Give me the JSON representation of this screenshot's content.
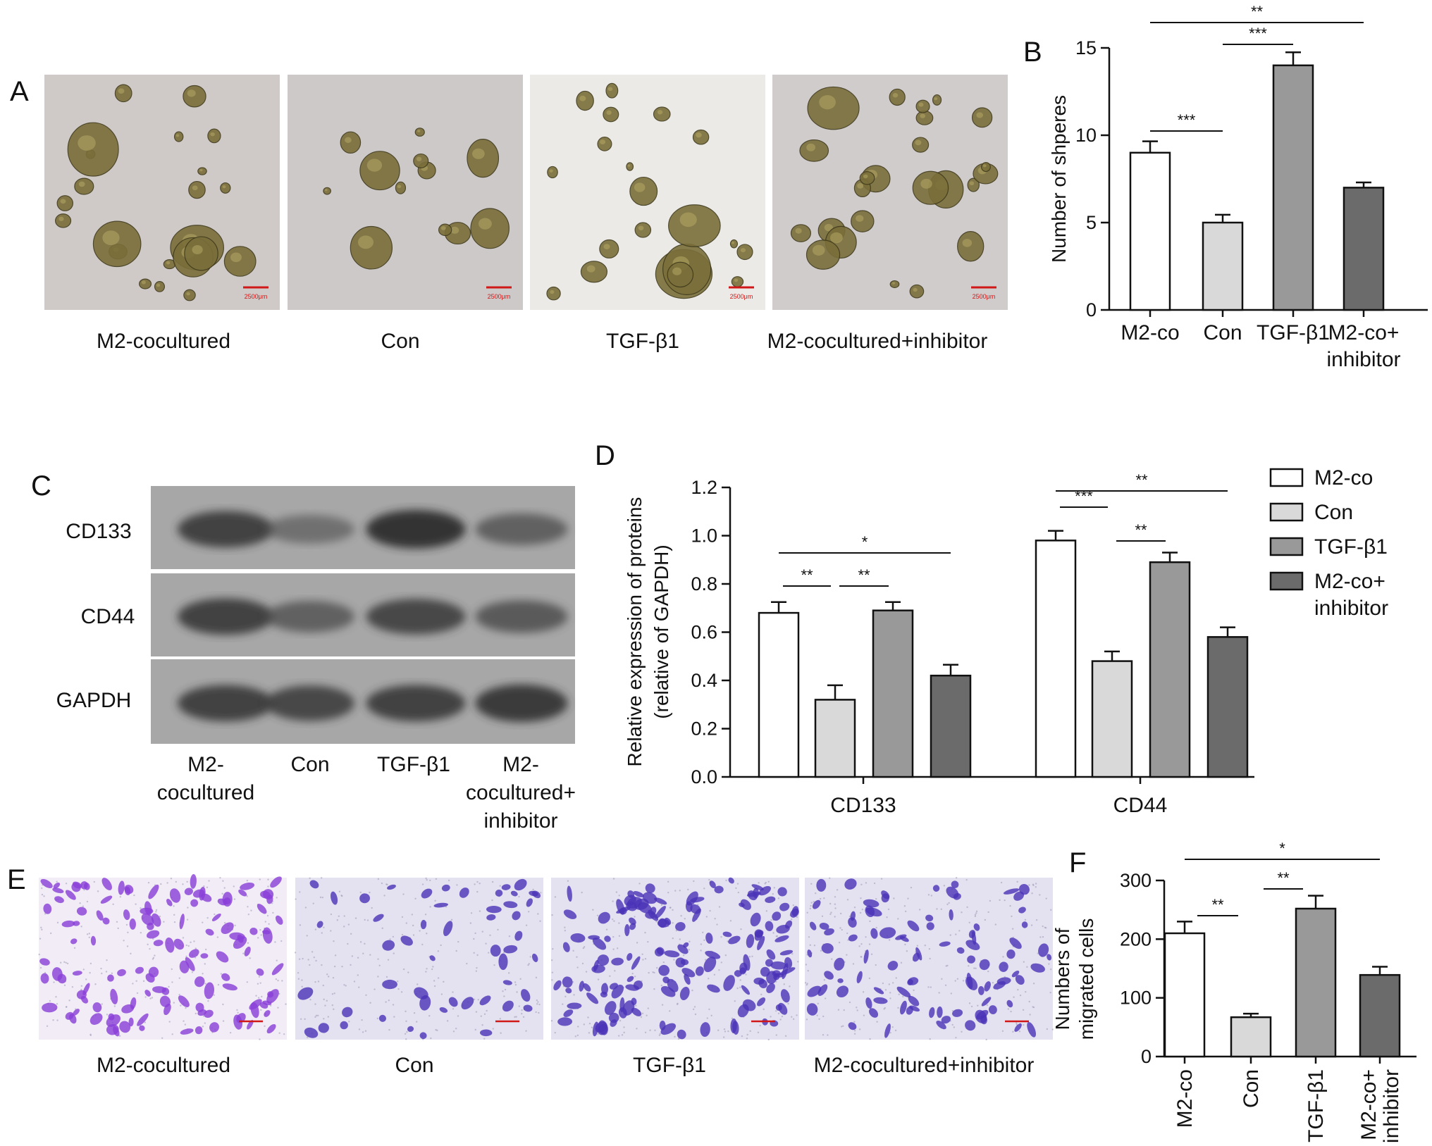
{
  "panel_labels": {
    "A": "A",
    "B": "B",
    "C": "C",
    "D": "D",
    "E": "E",
    "F": "F"
  },
  "panel_a": {
    "captions": [
      "M2-cocultured",
      "Con",
      "TGF-β1",
      "M2-cocultured+inhibitor"
    ],
    "scale_bar": "2500μm",
    "colors": {
      "background": "#cfcac7",
      "spheres": "#7a6e3a"
    }
  },
  "panel_c": {
    "row_labels": [
      "CD133",
      "CD44",
      "GAPDH"
    ],
    "lane_labels": [
      "M2-\ncocultured",
      "Con",
      "TGF-β1",
      "M2-\ncocultured+\ninhibitor"
    ],
    "band_strength": [
      [
        0.85,
        0.45,
        0.95,
        0.6
      ],
      [
        0.85,
        0.6,
        0.8,
        0.65
      ],
      [
        0.85,
        0.8,
        0.85,
        0.9
      ]
    ]
  },
  "panel_e": {
    "captions": [
      "M2-cocultured",
      "Con",
      "TGF-β1",
      "M2-cocultured+inhibitor"
    ],
    "colors": {
      "background": "#e4e2f0",
      "cells": "#4b33b8",
      "cells_first": "#8a3fd8"
    },
    "density": [
      0.75,
      0.3,
      0.9,
      0.55
    ]
  },
  "chart_data": [
    {
      "id": "B",
      "type": "bar",
      "categories": [
        "M2-co",
        "Con",
        "TGF-β1",
        "M2-co+\ninhibitor"
      ],
      "values": [
        9.0,
        5.0,
        14.0,
        7.0
      ],
      "errors": [
        0.65,
        0.45,
        0.75,
        0.3
      ],
      "ylabel": "Number of shperes",
      "ylim": [
        0,
        15
      ],
      "yticks": [
        0,
        5,
        10,
        15
      ],
      "bar_colors": [
        "#ffffff",
        "#d9d9d9",
        "#999999",
        "#6b6b6b"
      ],
      "significance": [
        {
          "from": 0,
          "to": 1,
          "label": "***"
        },
        {
          "from": 1,
          "to": 2,
          "label": "***"
        },
        {
          "from": 0,
          "to": 3,
          "label": "**"
        }
      ]
    },
    {
      "id": "D",
      "type": "bar",
      "categories": [
        "CD133",
        "CD44"
      ],
      "series": [
        {
          "name": "M2-co",
          "values": [
            0.68,
            0.98
          ],
          "errors": [
            0.045,
            0.04
          ]
        },
        {
          "name": "Con",
          "values": [
            0.32,
            0.48
          ],
          "errors": [
            0.06,
            0.04
          ]
        },
        {
          "name": "TGF-β1",
          "values": [
            0.69,
            0.89
          ],
          "errors": [
            0.035,
            0.04
          ]
        },
        {
          "name": "M2-co+\ninhibitor",
          "values": [
            0.42,
            0.58
          ],
          "errors": [
            0.045,
            0.04
          ]
        }
      ],
      "ylabel": "Relative expression of proteins\n(relative of GAPDH)",
      "ylim": [
        0,
        1.2
      ],
      "yticks": [
        "0.0",
        "0.2",
        "0.4",
        "0.6",
        "0.8",
        "1.0",
        "1.2"
      ],
      "bar_colors": [
        "#ffffff",
        "#d9d9d9",
        "#999999",
        "#6b6b6b"
      ],
      "legend_position": "right",
      "significance": [
        {
          "group": 0,
          "from": 0,
          "to": 1,
          "label": "**"
        },
        {
          "group": 0,
          "from": 1,
          "to": 2,
          "label": "**"
        },
        {
          "group": 0,
          "from": 0,
          "to": 3,
          "label": "*"
        },
        {
          "group": 1,
          "from": 0,
          "to": 1,
          "label": "***"
        },
        {
          "group": 1,
          "from": 1,
          "to": 2,
          "label": "**"
        },
        {
          "group": 1,
          "from": 0,
          "to": 3,
          "label": "**"
        }
      ]
    },
    {
      "id": "F",
      "type": "bar",
      "categories": [
        "M2-co",
        "Con",
        "TGF-β1",
        "M2-co+\ninhibitor"
      ],
      "values": [
        210,
        67,
        252,
        139
      ],
      "errors": [
        20,
        6,
        22,
        14
      ],
      "ylabel": "Numbers of\nmigrated cells",
      "ylim": [
        0,
        300
      ],
      "yticks": [
        0,
        100,
        200,
        300
      ],
      "bar_colors": [
        "#ffffff",
        "#d9d9d9",
        "#999999",
        "#6b6b6b"
      ],
      "rotated_labels": true,
      "significance": [
        {
          "from": 0,
          "to": 1,
          "label": "**"
        },
        {
          "from": 1,
          "to": 2,
          "label": "**"
        },
        {
          "from": 0,
          "to": 3,
          "label": "*"
        }
      ]
    }
  ]
}
